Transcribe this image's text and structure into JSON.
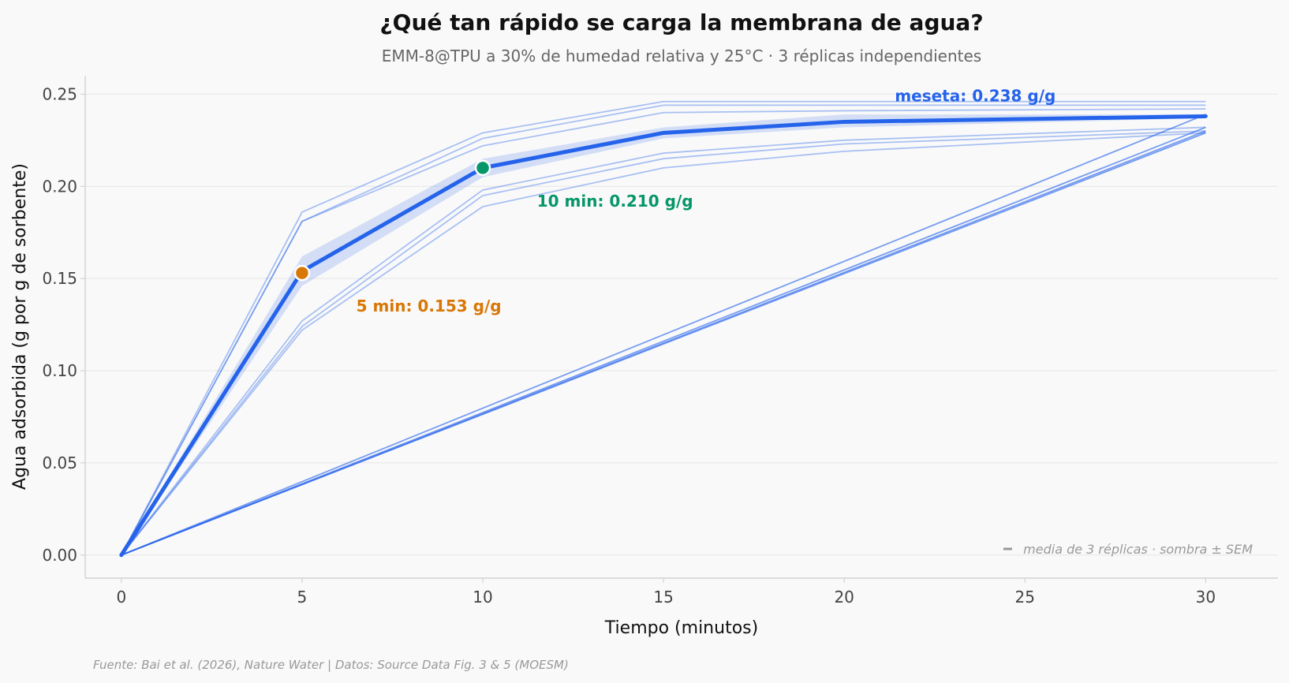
{
  "chart_data": {
    "type": "line",
    "title": "¿Qué tan rápido se carga la membrana de agua?",
    "subtitle": "EMM-8@TPU a 30% de humedad relativa y 25°C · 3 réplicas independientes",
    "xlabel": "Tiempo (minutos)",
    "ylabel": "Agua adsorbida (g por g de sorbente)",
    "xlim": [
      -1,
      32
    ],
    "ylim": [
      -0.0125,
      0.26
    ],
    "x_ticks": [
      0,
      5,
      10,
      15,
      20,
      25,
      30
    ],
    "y_ticks": [
      0.0,
      0.05,
      0.1,
      0.15,
      0.2,
      0.25
    ],
    "x_tick_labels": [
      "0",
      "5",
      "10",
      "15",
      "20",
      "25",
      "30"
    ],
    "y_tick_labels": [
      "0.00",
      "0.05",
      "0.10",
      "0.15",
      "0.20",
      "0.25"
    ],
    "grid": "horizontal",
    "x": [
      0,
      5,
      10,
      15,
      20,
      30
    ],
    "mean": {
      "color": "#2563eb",
      "values": [
        0,
        0.154,
        0.21,
        0.229,
        0.235,
        0.238
      ]
    },
    "sem_band": {
      "color": "#2563eb",
      "lower": [
        0,
        0.146,
        0.205,
        0.226,
        0.232,
        0.237
      ],
      "upper": [
        0,
        0.162,
        0.215,
        0.232,
        0.239,
        0.239
      ]
    },
    "individual_traces": {
      "color": "#2563eb",
      "series": [
        {
          "x": [
            0,
            5,
            10,
            15,
            20,
            30
          ],
          "values": [
            0,
            0.186,
            0.229,
            0.246,
            0.246,
            0.246
          ]
        },
        {
          "x": [
            0,
            5,
            10,
            15,
            20,
            30
          ],
          "values": [
            0,
            0.181,
            0.226,
            0.244,
            0.244,
            0.244
          ]
        },
        {
          "x": [
            0,
            5,
            10,
            15,
            20,
            30
          ],
          "values": [
            0,
            0.181,
            0.222,
            0.24,
            0.241,
            0.242
          ]
        },
        {
          "x": [
            0,
            5,
            10,
            15,
            20,
            30
          ],
          "values": [
            0,
            0.127,
            0.198,
            0.218,
            0.225,
            0.232
          ]
        },
        {
          "x": [
            0,
            5,
            10,
            15,
            20,
            30
          ],
          "values": [
            0,
            0.124,
            0.195,
            0.215,
            0.223,
            0.23
          ]
        },
        {
          "x": [
            0,
            5,
            10,
            15,
            20,
            30
          ],
          "values": [
            0,
            0.122,
            0.189,
            0.21,
            0.219,
            0.229
          ]
        },
        {
          "x": [
            0,
            30
          ],
          "values": [
            0,
            0.239
          ]
        },
        {
          "x": [
            0,
            30
          ],
          "values": [
            0,
            0.232
          ]
        },
        {
          "x": [
            0,
            30
          ],
          "values": [
            0,
            0.23
          ]
        },
        {
          "x": [
            0,
            30
          ],
          "values": [
            0,
            0.229
          ]
        }
      ]
    },
    "highlight_points": [
      {
        "x": 5,
        "y": 0.153,
        "color": "#d97706",
        "label": "5 min: 0.153 g/g",
        "label_x": 6.5,
        "label_y": 0.135
      },
      {
        "x": 10,
        "y": 0.21,
        "color": "#059669",
        "label": "10 min: 0.210 g/g",
        "label_x": 11.5,
        "label_y": 0.192
      }
    ],
    "plateau_annotation": {
      "label": "meseta: 0.238 g/g",
      "color": "#2563eb",
      "x": 21.4,
      "y": 0.249
    },
    "legend": {
      "text": "media de 3 réplicas · sombra ± SEM",
      "placement": "bottom-right"
    },
    "source": "Fuente: Bai et al. (2026), Nature Water | Datos: Source Data Fig. 3 & 5 (MOESM)"
  }
}
